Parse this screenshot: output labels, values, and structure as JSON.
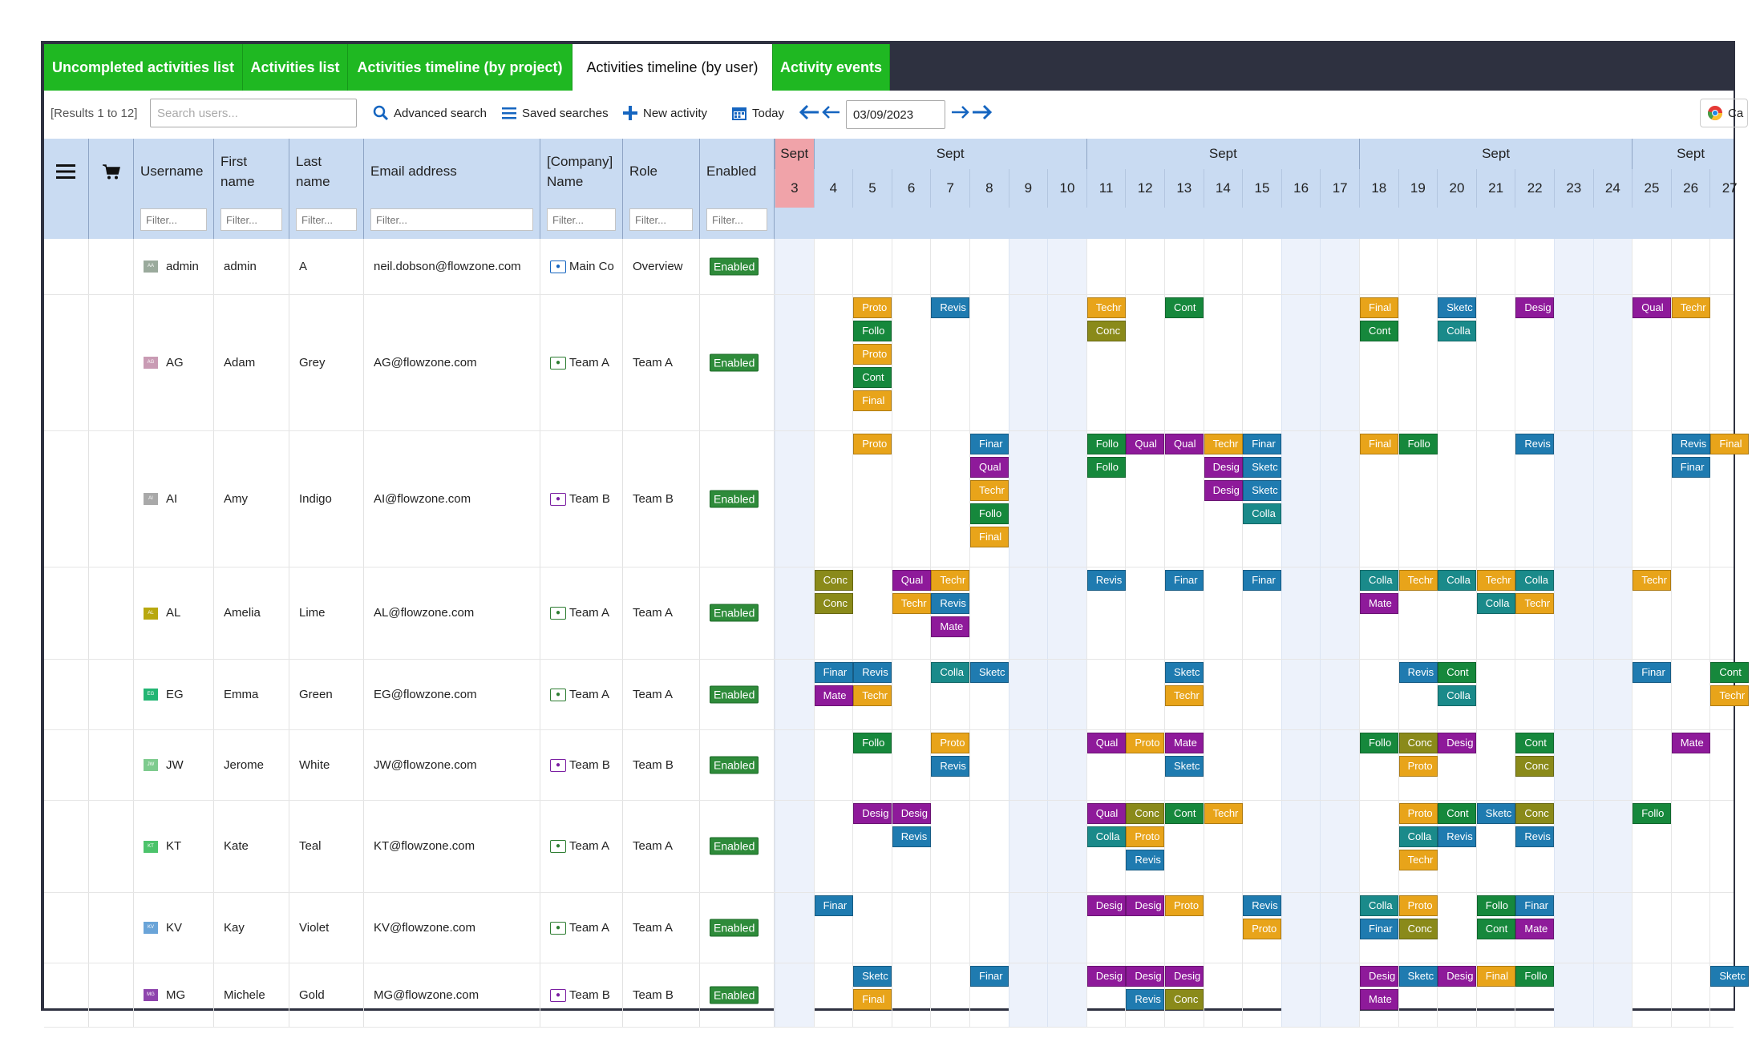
{
  "tabs": [
    {
      "label": "Uncompleted activities list",
      "active": false
    },
    {
      "label": "Activities list",
      "active": false
    },
    {
      "label": "Activities timeline (by project)",
      "active": false
    },
    {
      "label": "Activities timeline (by user)",
      "active": true
    },
    {
      "label": "Activity events",
      "active": false
    }
  ],
  "toolbar": {
    "results": "[Results 1 to 12]",
    "search_placeholder": "Search users...",
    "advanced_search": "Advanced search",
    "saved_searches": "Saved searches",
    "new_activity": "New activity",
    "today": "Today",
    "date_value": "03/09/2023",
    "right_button_text": "Ca"
  },
  "columns": [
    {
      "key": "menu",
      "title": ""
    },
    {
      "key": "cart",
      "title": ""
    },
    {
      "key": "username",
      "title": "Username",
      "filter": "Filter..."
    },
    {
      "key": "first",
      "title": "First name",
      "filter": "Filter..."
    },
    {
      "key": "last",
      "title": "Last name",
      "filter": "Filter..."
    },
    {
      "key": "email",
      "title": "Email address",
      "filter": "Filter..."
    },
    {
      "key": "company",
      "title": "[Company] Name",
      "filter": "Filter..."
    },
    {
      "key": "role",
      "title": "Role",
      "filter": "Filter..."
    },
    {
      "key": "enabled",
      "title": "Enabled",
      "filter": "Filter..."
    }
  ],
  "timeline": {
    "month_label": "Sept",
    "days": [
      "3",
      "4",
      "5",
      "6",
      "7",
      "8",
      "9",
      "10",
      "11",
      "12",
      "13",
      "14",
      "15",
      "16",
      "17",
      "18",
      "19",
      "20",
      "21",
      "22",
      "23",
      "24",
      "25",
      "26",
      "27"
    ],
    "today_index": 0,
    "weekend_indices": [
      0,
      6,
      7,
      13,
      14,
      20,
      21
    ]
  },
  "colors": {
    "Conc": "#8a8a1a",
    "Finar": "#1f7bb0",
    "Mate": "#8e1a9a",
    "Qual": "#8e1a9a",
    "Desig": "#8e1a9a",
    "Follo": "#16883c",
    "Cont": "#16883c",
    "Colla": "#1a8a8a",
    "Sketc": "#1f7bb0",
    "Revis": "#1f7bb0",
    "Techr": "#e8a41a",
    "Proto": "#e8a41a",
    "Final": "#e8a41a"
  },
  "rows": [
    {
      "username": "admin",
      "initials": "AA",
      "avatar_color": "#9aaa9c",
      "first": "admin",
      "last": "A",
      "email": "neil.dobson@flowzone.com",
      "company": "Main Co",
      "company_icon": "blue",
      "role": "Overview",
      "enabled": "Enabled",
      "activities": []
    },
    {
      "username": "AG",
      "initials": "AG",
      "avatar_color": "#c99bb4",
      "first": "Adam",
      "last": "Grey",
      "email": "AG@flowzone.com",
      "company": "Team A",
      "company_icon": "green",
      "role": "Team A",
      "enabled": "Enabled",
      "activities": [
        {
          "d": 2,
          "s": 0,
          "t": "Proto"
        },
        {
          "d": 2,
          "s": 1,
          "t": "Follo"
        },
        {
          "d": 2,
          "s": 2,
          "t": "Proto"
        },
        {
          "d": 2,
          "s": 3,
          "t": "Cont"
        },
        {
          "d": 2,
          "s": 4,
          "t": "Final"
        },
        {
          "d": 4,
          "s": 0,
          "t": "Revis"
        },
        {
          "d": 8,
          "s": 0,
          "t": "Techr"
        },
        {
          "d": 8,
          "s": 1,
          "t": "Conc"
        },
        {
          "d": 10,
          "s": 0,
          "t": "Cont"
        },
        {
          "d": 15,
          "s": 0,
          "t": "Final"
        },
        {
          "d": 15,
          "s": 1,
          "t": "Cont"
        },
        {
          "d": 17,
          "s": 0,
          "t": "Sketc"
        },
        {
          "d": 17,
          "s": 1,
          "t": "Colla"
        },
        {
          "d": 19,
          "s": 0,
          "t": "Desig"
        },
        {
          "d": 22,
          "s": 0,
          "t": "Qual"
        },
        {
          "d": 23,
          "s": 0,
          "t": "Techr"
        }
      ]
    },
    {
      "username": "AI",
      "initials": "AI",
      "avatar_color": "#a9a9a9",
      "first": "Amy",
      "last": "Indigo",
      "email": "AI@flowzone.com",
      "company": "Team B",
      "company_icon": "purple",
      "role": "Team B",
      "enabled": "Enabled",
      "activities": [
        {
          "d": 2,
          "s": 0,
          "t": "Proto"
        },
        {
          "d": 5,
          "s": 0,
          "t": "Finar"
        },
        {
          "d": 5,
          "s": 1,
          "t": "Qual"
        },
        {
          "d": 5,
          "s": 2,
          "t": "Techr"
        },
        {
          "d": 5,
          "s": 3,
          "t": "Follo"
        },
        {
          "d": 5,
          "s": 4,
          "t": "Final"
        },
        {
          "d": 8,
          "s": 0,
          "t": "Follo"
        },
        {
          "d": 8,
          "s": 1,
          "t": "Follo"
        },
        {
          "d": 9,
          "s": 0,
          "t": "Qual"
        },
        {
          "d": 10,
          "s": 0,
          "t": "Qual"
        },
        {
          "d": 11,
          "s": 0,
          "t": "Techr"
        },
        {
          "d": 11,
          "s": 1,
          "t": "Desig"
        },
        {
          "d": 11,
          "s": 2,
          "t": "Desig"
        },
        {
          "d": 12,
          "s": 0,
          "t": "Finar"
        },
        {
          "d": 12,
          "s": 1,
          "t": "Sketc"
        },
        {
          "d": 12,
          "s": 2,
          "t": "Sketc"
        },
        {
          "d": 12,
          "s": 3,
          "t": "Colla"
        },
        {
          "d": 15,
          "s": 0,
          "t": "Final"
        },
        {
          "d": 16,
          "s": 0,
          "t": "Follo"
        },
        {
          "d": 19,
          "s": 0,
          "t": "Revis"
        },
        {
          "d": 23,
          "s": 0,
          "t": "Revis"
        },
        {
          "d": 23,
          "s": 1,
          "t": "Finar"
        },
        {
          "d": 24,
          "s": 0,
          "t": "Final"
        }
      ]
    },
    {
      "username": "AL",
      "initials": "AL",
      "avatar_color": "#b8a80e",
      "first": "Amelia",
      "last": "Lime",
      "email": "AL@flowzone.com",
      "company": "Team A",
      "company_icon": "green",
      "role": "Team A",
      "enabled": "Enabled",
      "activities": [
        {
          "d": 1,
          "s": 0,
          "t": "Conc"
        },
        {
          "d": 1,
          "s": 1,
          "t": "Conc"
        },
        {
          "d": 3,
          "s": 0,
          "t": "Qual"
        },
        {
          "d": 4,
          "s": 0,
          "t": "Techr"
        },
        {
          "d": 3,
          "s": 1,
          "t": "Techr"
        },
        {
          "d": 4,
          "s": 1,
          "t": "Revis"
        },
        {
          "d": 4,
          "s": 2,
          "t": "Mate"
        },
        {
          "d": 8,
          "s": 0,
          "t": "Revis"
        },
        {
          "d": 10,
          "s": 0,
          "t": "Finar"
        },
        {
          "d": 12,
          "s": 0,
          "t": "Finar"
        },
        {
          "d": 15,
          "s": 0,
          "t": "Colla"
        },
        {
          "d": 15,
          "s": 1,
          "t": "Mate"
        },
        {
          "d": 16,
          "s": 0,
          "t": "Techr"
        },
        {
          "d": 17,
          "s": 0,
          "t": "Colla"
        },
        {
          "d": 18,
          "s": 0,
          "t": "Techr"
        },
        {
          "d": 18,
          "s": 1,
          "t": "Colla"
        },
        {
          "d": 19,
          "s": 0,
          "t": "Colla"
        },
        {
          "d": 19,
          "s": 1,
          "t": "Techr"
        },
        {
          "d": 22,
          "s": 0,
          "t": "Techr"
        }
      ]
    },
    {
      "username": "EG",
      "initials": "EG",
      "avatar_color": "#22b573",
      "first": "Emma",
      "last": "Green",
      "email": "EG@flowzone.com",
      "company": "Team A",
      "company_icon": "green",
      "role": "Team A",
      "enabled": "Enabled",
      "activities": [
        {
          "d": 1,
          "s": 0,
          "t": "Finar"
        },
        {
          "d": 1,
          "s": 1,
          "t": "Mate"
        },
        {
          "d": 2,
          "s": 0,
          "t": "Revis"
        },
        {
          "d": 2,
          "s": 1,
          "t": "Techr"
        },
        {
          "d": 4,
          "s": 0,
          "t": "Colla"
        },
        {
          "d": 5,
          "s": 0,
          "t": "Sketc"
        },
        {
          "d": 10,
          "s": 0,
          "t": "Sketc"
        },
        {
          "d": 10,
          "s": 1,
          "t": "Techr"
        },
        {
          "d": 16,
          "s": 0,
          "t": "Revis"
        },
        {
          "d": 17,
          "s": 0,
          "t": "Cont"
        },
        {
          "d": 17,
          "s": 1,
          "t": "Colla"
        },
        {
          "d": 22,
          "s": 0,
          "t": "Finar"
        },
        {
          "d": 24,
          "s": 0,
          "t": "Cont"
        },
        {
          "d": 24,
          "s": 1,
          "t": "Techr"
        }
      ]
    },
    {
      "username": "JW",
      "initials": "JW",
      "avatar_color": "#7ecb8e",
      "first": "Jerome",
      "last": "White",
      "email": "JW@flowzone.com",
      "company": "Team B",
      "company_icon": "purple",
      "role": "Team B",
      "enabled": "Enabled",
      "activities": [
        {
          "d": 2,
          "s": 0,
          "t": "Follo"
        },
        {
          "d": 4,
          "s": 0,
          "t": "Proto"
        },
        {
          "d": 4,
          "s": 1,
          "t": "Revis"
        },
        {
          "d": 8,
          "s": 0,
          "t": "Qual"
        },
        {
          "d": 9,
          "s": 0,
          "t": "Proto"
        },
        {
          "d": 10,
          "s": 0,
          "t": "Mate"
        },
        {
          "d": 10,
          "s": 1,
          "t": "Sketc"
        },
        {
          "d": 15,
          "s": 0,
          "t": "Follo"
        },
        {
          "d": 16,
          "s": 0,
          "t": "Conc"
        },
        {
          "d": 16,
          "s": 1,
          "t": "Proto"
        },
        {
          "d": 17,
          "s": 0,
          "t": "Desig"
        },
        {
          "d": 19,
          "s": 0,
          "t": "Cont"
        },
        {
          "d": 19,
          "s": 1,
          "t": "Conc"
        },
        {
          "d": 23,
          "s": 0,
          "t": "Mate"
        }
      ]
    },
    {
      "username": "KT",
      "initials": "KT",
      "avatar_color": "#4cc36b",
      "first": "Kate",
      "last": "Teal",
      "email": "KT@flowzone.com",
      "company": "Team A",
      "company_icon": "green",
      "role": "Team A",
      "enabled": "Enabled",
      "activities": [
        {
          "d": 2,
          "s": 0,
          "t": "Desig"
        },
        {
          "d": 3,
          "s": 0,
          "t": "Desig"
        },
        {
          "d": 3,
          "s": 1,
          "t": "Revis"
        },
        {
          "d": 8,
          "s": 0,
          "t": "Qual"
        },
        {
          "d": 8,
          "s": 1,
          "t": "Colla"
        },
        {
          "d": 9,
          "s": 0,
          "t": "Conc"
        },
        {
          "d": 9,
          "s": 1,
          "t": "Proto"
        },
        {
          "d": 9,
          "s": 2,
          "t": "Revis"
        },
        {
          "d": 10,
          "s": 0,
          "t": "Cont"
        },
        {
          "d": 11,
          "s": 0,
          "t": "Techr"
        },
        {
          "d": 16,
          "s": 0,
          "t": "Proto"
        },
        {
          "d": 16,
          "s": 1,
          "t": "Colla"
        },
        {
          "d": 16,
          "s": 2,
          "t": "Techr"
        },
        {
          "d": 17,
          "s": 0,
          "t": "Cont"
        },
        {
          "d": 17,
          "s": 1,
          "t": "Revis"
        },
        {
          "d": 18,
          "s": 0,
          "t": "Sketc"
        },
        {
          "d": 19,
          "s": 0,
          "t": "Conc"
        },
        {
          "d": 19,
          "s": 1,
          "t": "Revis"
        },
        {
          "d": 22,
          "s": 0,
          "t": "Follo"
        }
      ]
    },
    {
      "username": "KV",
      "initials": "KV",
      "avatar_color": "#6aa4d8",
      "first": "Kay",
      "last": "Violet",
      "email": "KV@flowzone.com",
      "company": "Team A",
      "company_icon": "green",
      "role": "Team A",
      "enabled": "Enabled",
      "activities": [
        {
          "d": 1,
          "s": 0,
          "t": "Finar"
        },
        {
          "d": 8,
          "s": 0,
          "t": "Desig"
        },
        {
          "d": 9,
          "s": 0,
          "t": "Desig"
        },
        {
          "d": 10,
          "s": 0,
          "t": "Proto"
        },
        {
          "d": 12,
          "s": 0,
          "t": "Revis"
        },
        {
          "d": 12,
          "s": 1,
          "t": "Proto"
        },
        {
          "d": 15,
          "s": 0,
          "t": "Colla"
        },
        {
          "d": 15,
          "s": 1,
          "t": "Finar"
        },
        {
          "d": 16,
          "s": 0,
          "t": "Proto"
        },
        {
          "d": 16,
          "s": 1,
          "t": "Conc"
        },
        {
          "d": 18,
          "s": 0,
          "t": "Follo"
        },
        {
          "d": 18,
          "s": 1,
          "t": "Cont"
        },
        {
          "d": 19,
          "s": 0,
          "t": "Finar"
        },
        {
          "d": 19,
          "s": 1,
          "t": "Mate"
        }
      ]
    },
    {
      "username": "MG",
      "initials": "MG",
      "avatar_color": "#8e44ad",
      "first": "Michele",
      "last": "Gold",
      "email": "MG@flowzone.com",
      "company": "Team B",
      "company_icon": "purple",
      "role": "Team B",
      "enabled": "Enabled",
      "activities": [
        {
          "d": 2,
          "s": 0,
          "t": "Sketc"
        },
        {
          "d": 2,
          "s": 1,
          "t": "Final"
        },
        {
          "d": 5,
          "s": 0,
          "t": "Finar"
        },
        {
          "d": 8,
          "s": 0,
          "t": "Desig"
        },
        {
          "d": 9,
          "s": 0,
          "t": "Desig"
        },
        {
          "d": 9,
          "s": 1,
          "t": "Revis"
        },
        {
          "d": 10,
          "s": 0,
          "t": "Desig"
        },
        {
          "d": 10,
          "s": 1,
          "t": "Conc"
        },
        {
          "d": 15,
          "s": 0,
          "t": "Desig"
        },
        {
          "d": 15,
          "s": 1,
          "t": "Mate"
        },
        {
          "d": 16,
          "s": 0,
          "t": "Sketc"
        },
        {
          "d": 17,
          "s": 0,
          "t": "Desig"
        },
        {
          "d": 18,
          "s": 0,
          "t": "Final"
        },
        {
          "d": 19,
          "s": 0,
          "t": "Follo"
        },
        {
          "d": 24,
          "s": 0,
          "t": "Sketc"
        }
      ]
    }
  ]
}
